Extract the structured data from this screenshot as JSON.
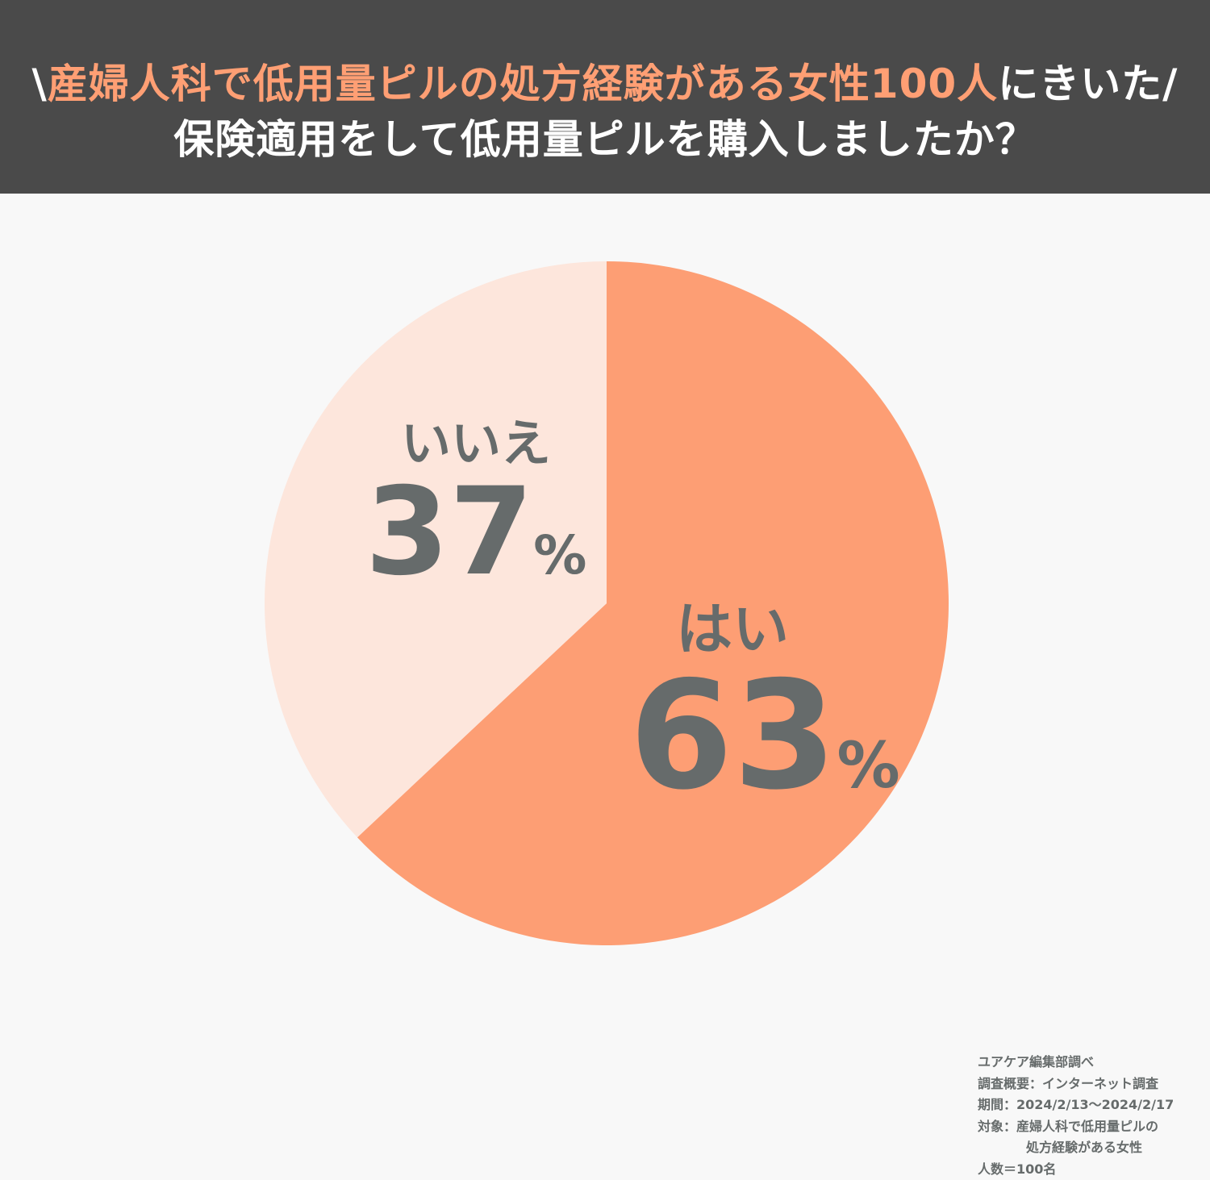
{
  "header": {
    "title_prefix": "\\",
    "title_accent": "産婦人科で低用量ピルの処方経験がある女性100人",
    "title_suffix": "にきいた/",
    "question": "保険適用をして低用量ピルを購入しましたか？"
  },
  "chart_data": {
    "type": "pie",
    "title": "保険適用をして低用量ピルを購入しましたか？",
    "slices": [
      {
        "label": "はい",
        "value": 63,
        "display": "63",
        "unit": "%",
        "color": "#fd9e74"
      },
      {
        "label": "いいえ",
        "value": 37,
        "display": "37",
        "unit": "%",
        "color": "#fde6dc"
      }
    ],
    "start": "12 o'clock",
    "direction": "clockwise",
    "legend": "none",
    "label_color": "#666b6b"
  },
  "notes": {
    "source": "ユアケア編集部調べ",
    "method": "調査概要：インターネット調査",
    "period": "期間：2024/2/13〜2024/2/17",
    "target_1": "対象：産婦人科で低用量ピルの",
    "target_2": "処方経験がある女性",
    "count": "人数＝100名"
  },
  "colors": {
    "header_bg": "#4a4a4a",
    "accent": "#ff9f74",
    "background": "#f8f8f8",
    "text_gray": "#666b6b"
  }
}
